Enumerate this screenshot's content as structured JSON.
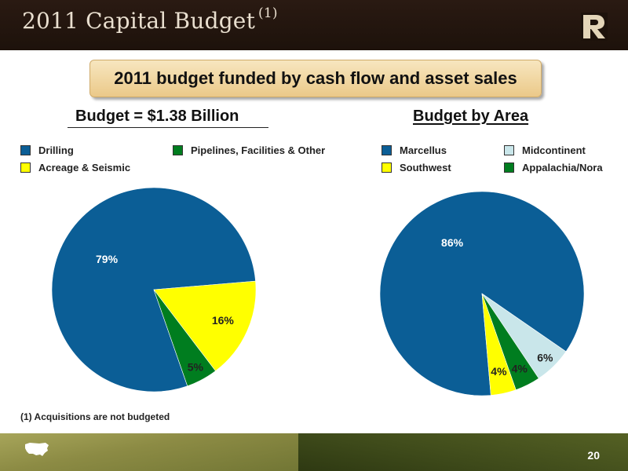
{
  "header": {
    "title": "2011 Capital Budget",
    "title_superscript": "(1)"
  },
  "banner": "2011 budget funded by cash flow and asset sales",
  "page_number": "20",
  "footnote": "(1)  Acquisitions are not budgeted",
  "chart_data": [
    {
      "type": "pie",
      "title": "Budget = $1.38 Billion",
      "legend_placement": "top",
      "slices": [
        {
          "name": "Drilling",
          "value": 79,
          "label": "79%",
          "color": "#0b5e96"
        },
        {
          "name": "Acreage & Seismic",
          "value": 16,
          "label": "16%",
          "color": "#ffff00"
        },
        {
          "name": "Pipelines, Facilities & Other",
          "value": 5,
          "label": "5%",
          "color": "#007d1f"
        }
      ]
    },
    {
      "type": "pie",
      "title": "Budget by Area",
      "legend_placement": "top",
      "slices": [
        {
          "name": "Marcellus",
          "value": 86,
          "label": "86%",
          "color": "#0b5e96"
        },
        {
          "name": "Midcontinent",
          "value": 6,
          "label": "6%",
          "color": "#c9e6ea"
        },
        {
          "name": "Appalachia/Nora",
          "value": 4,
          "label": "4%",
          "color": "#007d1f"
        },
        {
          "name": "Southwest",
          "value": 4,
          "label": "4%",
          "color": "#ffff00"
        }
      ]
    }
  ]
}
